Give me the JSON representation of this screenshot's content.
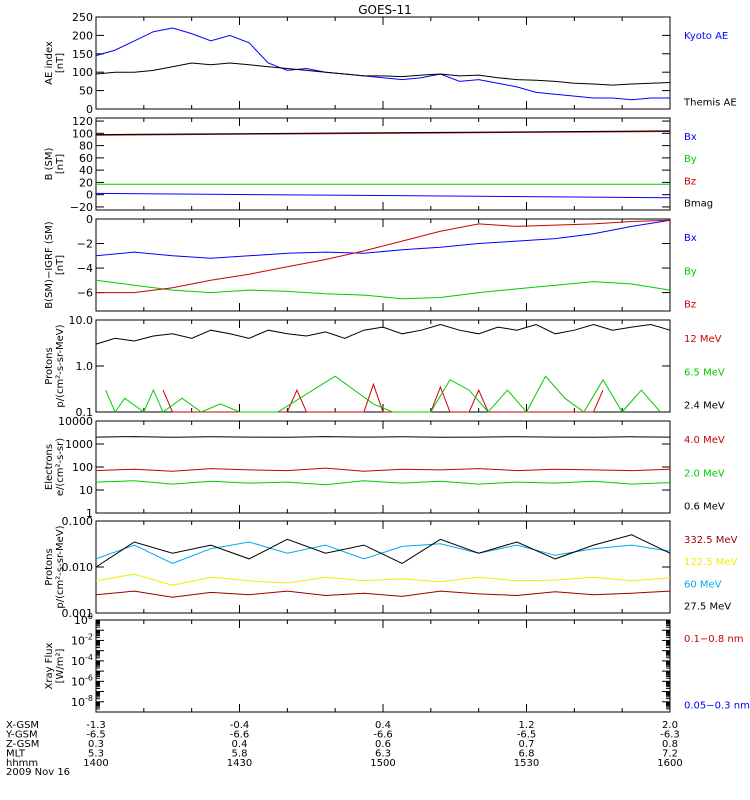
{
  "title": "GOES-11",
  "date": "2009 Nov 16",
  "footer": {
    "labels": [
      "X-GSM",
      "Y-GSM",
      "Z-GSM",
      "MLT",
      "hhmm"
    ],
    "columns": [
      [
        "-1.3",
        "-6.5",
        "0.3",
        "5.3",
        "1400"
      ],
      [
        "-0.4",
        "-6.6",
        "0.4",
        "5.8",
        "1430"
      ],
      [
        "0.4",
        "-6.6",
        "0.6",
        "6.3",
        "1500"
      ],
      [
        "1.2",
        "-6.5",
        "0.7",
        "6.8",
        "1530"
      ],
      [
        "2.0",
        "-6.3",
        "0.8",
        "7.2",
        "1600"
      ]
    ]
  },
  "colors": {
    "black": "#000000",
    "blue": "#0000ff",
    "red": "#cc0000",
    "green": "#00cc00",
    "cyan": "#00aaee",
    "yellow": "#eeee00",
    "darkred": "#990000"
  },
  "chart_data": [
    {
      "type": "line",
      "ylabel": [
        "AE index",
        "[nT]"
      ],
      "ylim": [
        0,
        250
      ],
      "yticks": [
        "0",
        "50",
        "100",
        "150",
        "200",
        "250"
      ],
      "series": [
        {
          "name": "Kyoto AE",
          "color": "#0000ff",
          "x": [
            0,
            4,
            8,
            12,
            16,
            20,
            24,
            28,
            32,
            36,
            40,
            44,
            48,
            52,
            56,
            60,
            64,
            68,
            72,
            76,
            80,
            84,
            88,
            92,
            96,
            100,
            104,
            108,
            112,
            116,
            120
          ],
          "values": [
            145,
            160,
            185,
            210,
            220,
            205,
            185,
            200,
            180,
            125,
            105,
            110,
            100,
            95,
            90,
            85,
            80,
            85,
            95,
            75,
            80,
            70,
            60,
            45,
            40,
            35,
            30,
            30,
            25,
            30,
            30
          ]
        },
        {
          "name": "Themis AE",
          "color": "#000000",
          "x": [
            0,
            4,
            8,
            12,
            16,
            20,
            24,
            28,
            32,
            36,
            40,
            44,
            48,
            52,
            56,
            60,
            64,
            68,
            72,
            76,
            80,
            84,
            88,
            92,
            96,
            100,
            104,
            108,
            112,
            116,
            120
          ],
          "values": [
            95,
            100,
            100,
            105,
            115,
            125,
            120,
            125,
            120,
            115,
            110,
            105,
            100,
            95,
            90,
            90,
            88,
            92,
            95,
            90,
            92,
            85,
            80,
            78,
            75,
            70,
            68,
            65,
            68,
            70,
            72
          ]
        }
      ]
    },
    {
      "type": "line",
      "ylabel": [
        "B (SM)",
        "[nT]"
      ],
      "ylim": [
        -25,
        125
      ],
      "yticks": [
        "−20",
        "0",
        "20",
        "40",
        "60",
        "80",
        "100",
        "120"
      ],
      "series": [
        {
          "name": "Bx",
          "color": "#0000ff",
          "x": [
            0,
            120
          ],
          "values": [
            2,
            -5
          ]
        },
        {
          "name": "By",
          "color": "#00cc00",
          "x": [
            0,
            120
          ],
          "values": [
            17,
            17
          ]
        },
        {
          "name": "Bz",
          "color": "#cc0000",
          "x": [
            0,
            120
          ],
          "values": [
            97,
            103
          ]
        },
        {
          "name": "Bmag",
          "color": "#000000",
          "x": [
            0,
            120
          ],
          "values": [
            98,
            104
          ]
        }
      ]
    },
    {
      "type": "line",
      "ylabel": [
        "B(SM)−IGRF (SM)",
        "[nT]"
      ],
      "ylim": [
        -7.5,
        0
      ],
      "yticks": [
        "−6",
        "−4",
        "−2",
        "0"
      ],
      "series": [
        {
          "name": "Bx",
          "color": "#0000ff",
          "x": [
            0,
            8,
            16,
            24,
            32,
            40,
            48,
            56,
            64,
            72,
            80,
            88,
            96,
            104,
            112,
            120
          ],
          "values": [
            -3.0,
            -2.7,
            -3.0,
            -3.2,
            -3.0,
            -2.8,
            -2.7,
            -2.8,
            -2.5,
            -2.3,
            -2.0,
            -1.8,
            -1.6,
            -1.2,
            -0.6,
            -0.1
          ]
        },
        {
          "name": "By",
          "color": "#00cc00",
          "x": [
            0,
            8,
            16,
            24,
            32,
            40,
            48,
            56,
            64,
            72,
            80,
            88,
            96,
            104,
            112,
            120
          ],
          "values": [
            -5.0,
            -5.4,
            -5.8,
            -6.0,
            -5.8,
            -5.9,
            -6.1,
            -6.2,
            -6.5,
            -6.4,
            -6.0,
            -5.7,
            -5.4,
            -5.1,
            -5.3,
            -5.8
          ]
        },
        {
          "name": "Bz",
          "color": "#cc0000",
          "x": [
            0,
            8,
            16,
            24,
            32,
            40,
            48,
            56,
            64,
            72,
            80,
            88,
            96,
            104,
            112,
            120
          ],
          "values": [
            -6.0,
            -6.0,
            -5.6,
            -5.0,
            -4.5,
            -3.9,
            -3.3,
            -2.6,
            -1.8,
            -1.0,
            -0.4,
            -0.6,
            -0.5,
            -0.4,
            -0.2,
            -0.1
          ]
        }
      ]
    },
    {
      "type": "line",
      "ylabel": [
        "Protons",
        "p/(cm²-s-sr-MeV)"
      ],
      "yscale": "log",
      "ylim": [
        0.1,
        10
      ],
      "yticks": [
        "0.1",
        "1.0",
        "10.0"
      ],
      "series": [
        {
          "name": "12 MeV",
          "color": "#cc0000",
          "x": [
            14,
            16,
            40,
            42,
            44,
            56,
            58,
            60,
            70,
            72,
            74,
            78,
            80,
            82,
            104,
            106
          ],
          "values": [
            0.3,
            0.1,
            0.1,
            0.3,
            0.1,
            0.1,
            0.4,
            0.1,
            0.1,
            0.35,
            0.1,
            0.1,
            0.3,
            0.1,
            0.1,
            0.3
          ]
        },
        {
          "name": "6.5 MeV",
          "color": "#00cc00",
          "x": [
            2,
            4,
            6,
            10,
            12,
            14,
            18,
            22,
            26,
            30,
            34,
            38,
            50,
            54,
            58,
            62,
            66,
            70,
            74,
            78,
            82,
            86,
            90,
            94,
            98,
            102,
            106,
            110,
            114,
            118
          ],
          "values": [
            0.3,
            0.1,
            0.2,
            0.1,
            0.3,
            0.1,
            0.2,
            0.1,
            0.15,
            0.1,
            0.1,
            0.1,
            0.6,
            0.3,
            0.15,
            0.1,
            0.1,
            0.1,
            0.5,
            0.3,
            0.1,
            0.3,
            0.1,
            0.6,
            0.2,
            0.1,
            0.5,
            0.1,
            0.3,
            0.1
          ]
        },
        {
          "name": "2.4 MeV",
          "color": "#000000",
          "x": [
            0,
            4,
            8,
            12,
            16,
            20,
            24,
            28,
            32,
            36,
            40,
            44,
            48,
            52,
            56,
            60,
            64,
            68,
            72,
            76,
            80,
            84,
            88,
            92,
            96,
            100,
            104,
            108,
            112,
            116,
            120
          ],
          "values": [
            3,
            4,
            3.5,
            4.5,
            5,
            4,
            6,
            5,
            4,
            6,
            5,
            4.5,
            5.5,
            4,
            6,
            7,
            5,
            6,
            8,
            6,
            5,
            7,
            6,
            8,
            5,
            6,
            8,
            6,
            7,
            8,
            6
          ]
        }
      ]
    },
    {
      "type": "line",
      "ylabel": [
        "Electrons",
        "e/(cm²-s-sr)"
      ],
      "yscale": "log",
      "ylim": [
        1,
        10000
      ],
      "yticks": [
        "1",
        "10",
        "100",
        "1000",
        "10000"
      ],
      "series": [
        {
          "name": "4.0 MeV",
          "color": "#cc0000",
          "x": [
            0,
            8,
            16,
            24,
            32,
            40,
            48,
            56,
            64,
            72,
            80,
            88,
            96,
            104,
            112,
            120
          ],
          "values": [
            70,
            80,
            65,
            85,
            75,
            70,
            90,
            65,
            80,
            75,
            85,
            70,
            80,
            75,
            70,
            80
          ]
        },
        {
          "name": "2.0 MeV",
          "color": "#00cc00",
          "x": [
            0,
            8,
            16,
            24,
            32,
            40,
            48,
            56,
            64,
            72,
            80,
            88,
            96,
            104,
            112,
            120
          ],
          "values": [
            22,
            25,
            18,
            24,
            20,
            22,
            17,
            25,
            20,
            24,
            18,
            22,
            20,
            24,
            18,
            21
          ]
        },
        {
          "name": "0.6 MeV",
          "color": "#000000",
          "x": [
            0,
            8,
            16,
            24,
            32,
            40,
            48,
            56,
            64,
            72,
            80,
            88,
            96,
            104,
            112,
            120
          ],
          "values": [
            2000,
            2100,
            1950,
            2050,
            2000,
            1980,
            2100,
            2000,
            2050,
            1950,
            2000,
            2080,
            2000,
            1980,
            2050,
            2000
          ]
        }
      ]
    },
    {
      "type": "line",
      "ylabel": [
        "Protons",
        "p/(cm²-s-sr-MeV)"
      ],
      "yscale": "log",
      "ylim": [
        0.001,
        0.1
      ],
      "yticks": [
        "0.001",
        "0.010",
        "0.100"
      ],
      "series": [
        {
          "name": "332.5 MeV",
          "color": "#990000",
          "x": [
            0,
            8,
            16,
            24,
            32,
            40,
            48,
            56,
            64,
            72,
            80,
            88,
            96,
            104,
            112,
            120
          ],
          "values": [
            0.0025,
            0.003,
            0.0022,
            0.0028,
            0.0025,
            0.003,
            0.0024,
            0.0027,
            0.0023,
            0.003,
            0.0026,
            0.0024,
            0.0029,
            0.0025,
            0.0027,
            0.003
          ]
        },
        {
          "name": "122.5 MeV",
          "color": "#eeee00",
          "x": [
            0,
            8,
            16,
            24,
            32,
            40,
            48,
            56,
            64,
            72,
            80,
            88,
            96,
            104,
            112,
            120
          ],
          "values": [
            0.005,
            0.007,
            0.004,
            0.006,
            0.005,
            0.0045,
            0.006,
            0.005,
            0.0055,
            0.0048,
            0.006,
            0.005,
            0.0052,
            0.006,
            0.005,
            0.0058
          ]
        },
        {
          "name": "60 MeV",
          "color": "#00aaee",
          "x": [
            0,
            8,
            16,
            24,
            32,
            40,
            48,
            56,
            64,
            72,
            80,
            88,
            96,
            104,
            112,
            120
          ],
          "values": [
            0.015,
            0.03,
            0.012,
            0.025,
            0.035,
            0.02,
            0.03,
            0.015,
            0.028,
            0.032,
            0.02,
            0.03,
            0.018,
            0.025,
            0.03,
            0.022
          ]
        },
        {
          "name": "27.5 MeV",
          "color": "#000000",
          "x": [
            0,
            8,
            16,
            24,
            32,
            40,
            48,
            56,
            64,
            72,
            80,
            88,
            96,
            104,
            112,
            120
          ],
          "values": [
            0.01,
            0.035,
            0.02,
            0.03,
            0.015,
            0.04,
            0.02,
            0.03,
            0.012,
            0.04,
            0.02,
            0.035,
            0.015,
            0.03,
            0.05,
            0.02
          ]
        }
      ]
    },
    {
      "type": "line",
      "ylabel": [
        "Xray  Flux",
        "[W/m²]"
      ],
      "yscale": "log",
      "ylim": [
        1e-09,
        1
      ],
      "ytick_exps": [
        "-8",
        "-6",
        "-4",
        "-2",
        "0"
      ],
      "series": [
        {
          "name": "0.1−0.8 nm",
          "color": "#cc0000",
          "x": [],
          "values": []
        },
        {
          "name": "0.05−0.3 nm",
          "color": "#0000ff",
          "x": [],
          "values": []
        }
      ]
    }
  ]
}
